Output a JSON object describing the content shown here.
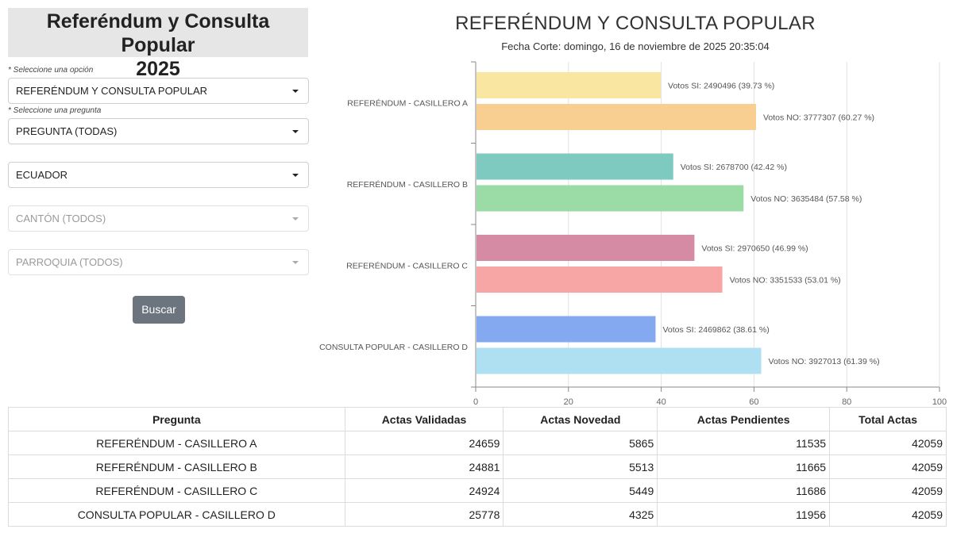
{
  "sidebar": {
    "title_line1": "Referéndum y Consulta Popular",
    "title_line2": "2025",
    "option_hint": "* Seleccione una opción",
    "option_value": "REFERÉNDUM Y CONSULTA POPULAR",
    "question_hint": "* Seleccione una pregunta",
    "question_value": "PREGUNTA (TODAS)",
    "province_value": "ECUADOR",
    "canton_value": "CANTÓN (TODOS)",
    "parish_value": "PARROQUIA (TODOS)",
    "search_label": "Buscar"
  },
  "chart_data": {
    "type": "bar",
    "orientation": "horizontal",
    "title": "REFERÉNDUM Y CONSULTA POPULAR",
    "subtitle": "Fecha Corte: domingo, 16 de noviembre de 2025 20:35:04",
    "categories": [
      "REFERÉNDUM - CASILLERO A",
      "REFERÉNDUM - CASILLERO B",
      "REFERÉNDUM - CASILLERO C",
      "CONSULTA POPULAR - CASILLERO D"
    ],
    "xlim": [
      0,
      100
    ],
    "xticks": [
      0,
      20,
      40,
      60,
      80,
      100
    ],
    "grid": true,
    "bars": [
      {
        "cat": 0,
        "value": 39.73,
        "label": "Votos SI: 2490496 (39.73 %)",
        "color": "#f9e6a0"
      },
      {
        "cat": 0,
        "value": 60.27,
        "label": "Votos NO: 3777307 (60.27 %)",
        "color": "#f9cf91"
      },
      {
        "cat": 1,
        "value": 42.42,
        "label": "Votos SI: 2678700 (42.42 %)",
        "color": "#7ecac0"
      },
      {
        "cat": 1,
        "value": 57.58,
        "label": "Votos NO: 3635484 (57.58 %)",
        "color": "#9bdba5"
      },
      {
        "cat": 2,
        "value": 46.99,
        "label": "Votos SI: 2970650 (46.99 %)",
        "color": "#d68ba4"
      },
      {
        "cat": 2,
        "value": 53.01,
        "label": "Votos NO: 3351533 (53.01 %)",
        "color": "#f7a5a5"
      },
      {
        "cat": 3,
        "value": 38.61,
        "label": "Votos SI: 2469862 (38.61 %)",
        "color": "#85a9f0"
      },
      {
        "cat": 3,
        "value": 61.39,
        "label": "Votos NO: 3927013 (61.39 %)",
        "color": "#afe0f1"
      }
    ]
  },
  "table": {
    "headers": [
      "Pregunta",
      "Actas Validadas",
      "Actas Novedad",
      "Actas Pendientes",
      "Total Actas"
    ],
    "rows": [
      [
        "REFERÉNDUM - CASILLERO A",
        "24659",
        "5865",
        "11535",
        "42059"
      ],
      [
        "REFERÉNDUM - CASILLERO B",
        "24881",
        "5513",
        "11665",
        "42059"
      ],
      [
        "REFERÉNDUM - CASILLERO C",
        "24924",
        "5449",
        "11686",
        "42059"
      ],
      [
        "CONSULTA POPULAR - CASILLERO D",
        "25778",
        "4325",
        "11956",
        "42059"
      ]
    ]
  }
}
